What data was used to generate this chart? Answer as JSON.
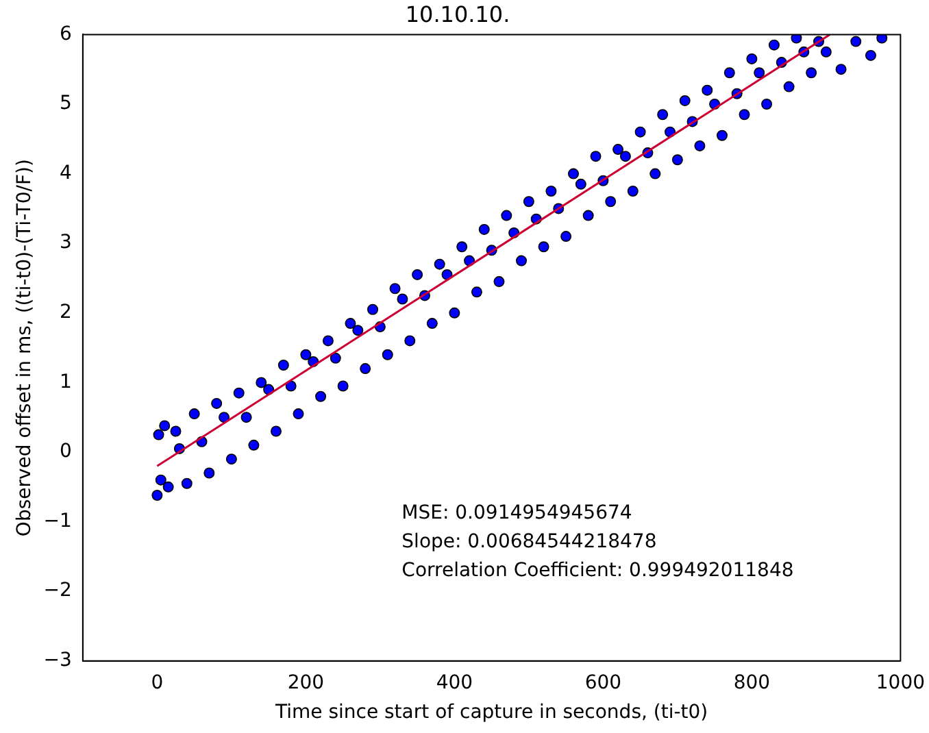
{
  "chart_data": {
    "type": "scatter",
    "title": "10.10.10.",
    "xlabel": "Time since start of capture in seconds, (ti-t0)",
    "ylabel": "Observed offset in ms, ((ti-t0)-(Ti-T0/F))",
    "xlim": [
      -100,
      1000
    ],
    "xticks": [
      0,
      200,
      400,
      600,
      800,
      1000
    ],
    "ylim": [
      -3,
      6
    ],
    "yticks": [
      -3,
      -2,
      -1,
      0,
      1,
      2,
      3,
      4,
      5,
      6
    ],
    "grid": false,
    "legend": false,
    "marker": "circle",
    "series": [
      {
        "type": "scatter",
        "color": "#0000ff",
        "x": [
          0,
          2,
          5,
          10,
          15,
          25,
          40,
          50,
          70,
          80,
          100,
          110,
          130,
          140,
          160,
          170,
          190,
          200,
          220,
          230,
          250,
          260,
          280,
          290,
          310,
          320,
          340,
          350,
          370,
          380,
          400,
          410,
          430,
          440,
          460,
          470,
          490,
          500,
          520,
          530,
          550,
          560,
          580,
          590,
          610,
          620,
          640,
          650,
          670,
          680,
          700,
          710,
          730,
          740,
          760,
          770,
          790,
          800,
          820,
          830,
          850,
          860,
          880,
          900,
          920,
          940,
          960,
          975,
          30,
          60,
          90,
          120,
          150,
          180,
          210,
          240,
          270,
          300,
          330,
          360,
          390,
          420,
          450,
          480,
          510,
          540,
          570,
          600,
          630,
          660,
          690,
          720,
          750,
          780,
          810,
          840,
          870,
          890
        ],
        "values": [
          -0.62,
          0.25,
          -0.4,
          0.38,
          -0.5,
          0.3,
          -0.45,
          0.55,
          -0.3,
          0.7,
          -0.1,
          0.85,
          0.1,
          1.0,
          0.3,
          1.25,
          0.55,
          1.4,
          0.8,
          1.6,
          0.95,
          1.85,
          1.2,
          2.05,
          1.4,
          2.35,
          1.6,
          2.55,
          1.85,
          2.7,
          2.0,
          2.95,
          2.3,
          3.2,
          2.45,
          3.4,
          2.75,
          3.6,
          2.95,
          3.75,
          3.1,
          4.0,
          3.4,
          4.25,
          3.6,
          4.35,
          3.75,
          4.6,
          4.0,
          4.85,
          4.2,
          5.05,
          4.4,
          5.2,
          4.55,
          5.45,
          4.85,
          5.65,
          5.0,
          5.85,
          5.25,
          5.95,
          5.45,
          5.75,
          5.5,
          5.9,
          5.7,
          5.95,
          0.05,
          0.15,
          0.5,
          0.5,
          0.9,
          0.95,
          1.3,
          1.35,
          1.75,
          1.8,
          2.2,
          2.25,
          2.55,
          2.75,
          2.9,
          3.15,
          3.35,
          3.5,
          3.85,
          3.9,
          4.25,
          4.3,
          4.6,
          4.75,
          5.0,
          5.15,
          5.45,
          5.6,
          5.75,
          5.9
        ]
      },
      {
        "type": "line",
        "color": "#cc0033",
        "marker": "none",
        "x": [
          0,
          905
        ],
        "values": [
          -0.2,
          6
        ]
      }
    ],
    "annotations": [
      "MSE: 0.0914954945674",
      "Slope: 0.00684544218478",
      "Correlation Coefficient: 0.999492011848"
    ]
  }
}
